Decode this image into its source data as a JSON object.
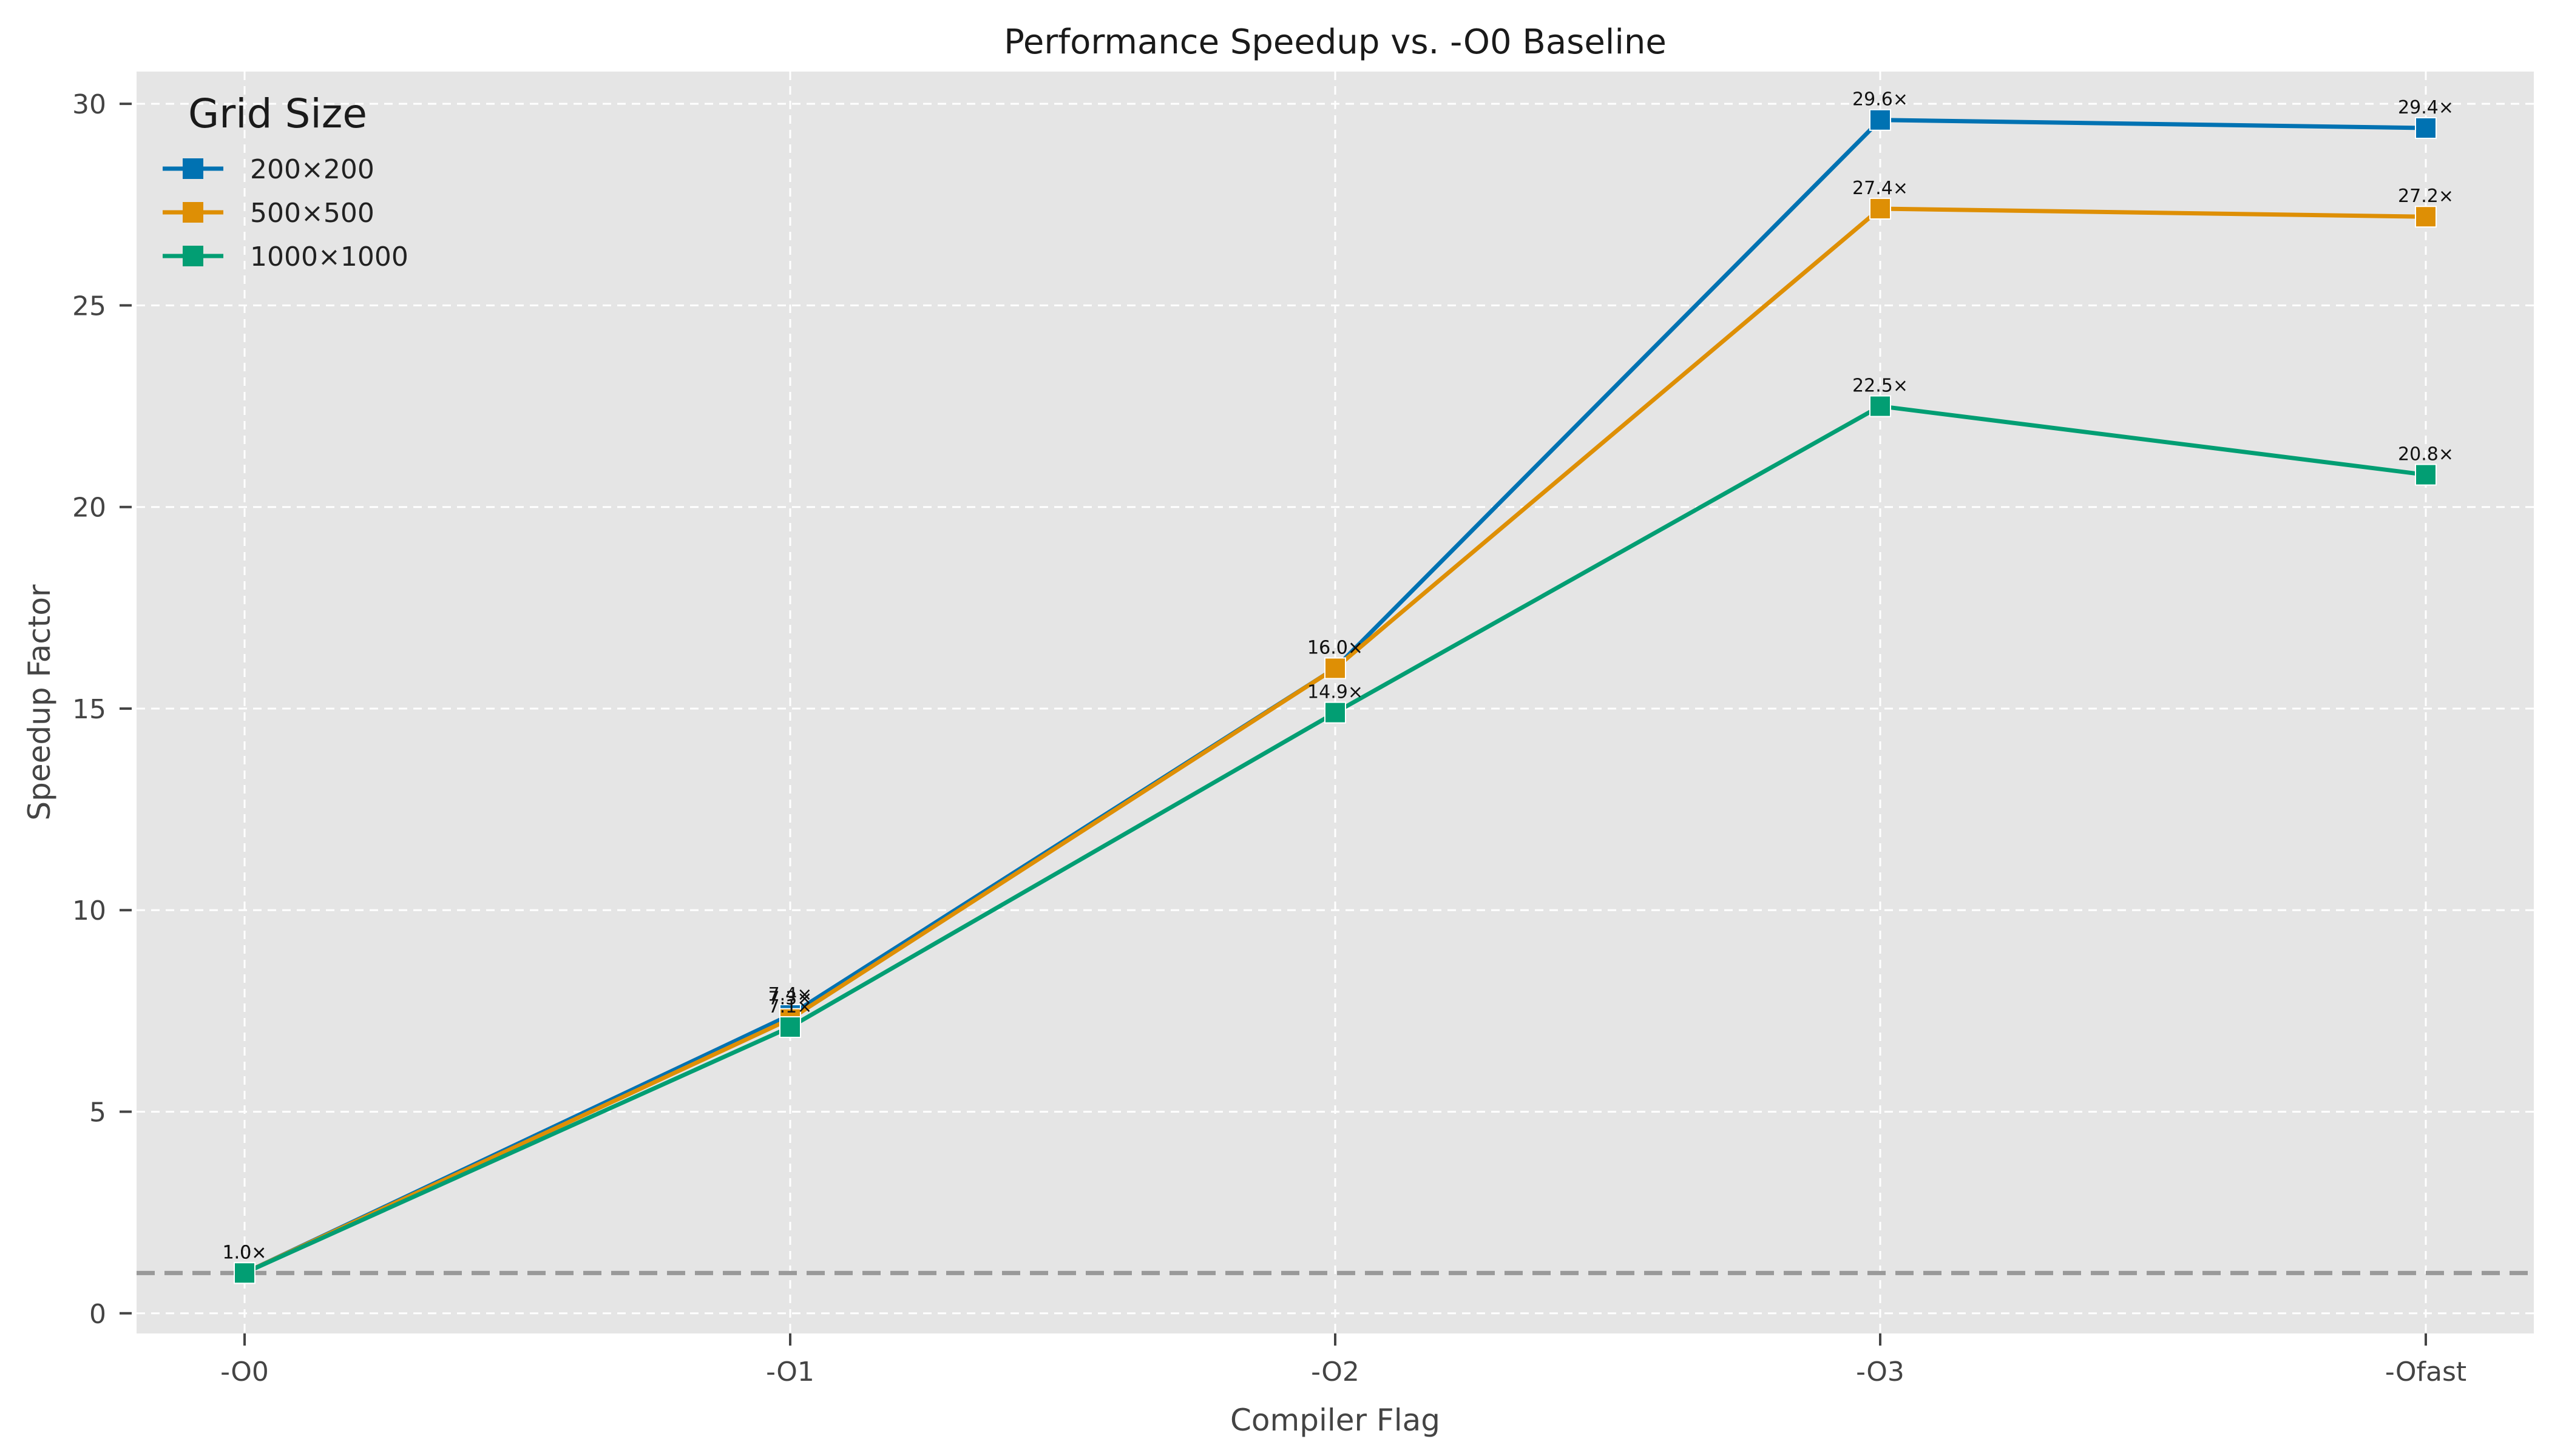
{
  "chart_data": {
    "type": "line",
    "title": "Performance Speedup vs. -O0 Baseline",
    "xlabel": "Compiler Flag",
    "ylabel": "Speedup Factor",
    "categories": [
      "-O0",
      "-O1",
      "-O2",
      "-O3",
      "-Ofast"
    ],
    "ylim": [
      -0.5,
      30.8
    ],
    "yticks": [
      0,
      5,
      10,
      15,
      20,
      25,
      30
    ],
    "grid": true,
    "legend_title": "Grid Size",
    "legend_position": "top-left",
    "baseline": {
      "value": 1.0,
      "style": "dashed",
      "color": "#999999"
    },
    "series": [
      {
        "name": "200×200",
        "color": "#0072b2",
        "values": [
          1.0,
          7.4,
          16.0,
          29.6,
          29.4
        ],
        "labels": [
          "1.0×",
          "7.4×",
          "16.0×",
          "29.6×",
          "29.4×"
        ]
      },
      {
        "name": "500×500",
        "color": "#de8f05",
        "values": [
          1.0,
          7.3,
          16.0,
          27.4,
          27.2
        ],
        "labels": [
          "1.0×",
          "7.3×",
          "16.0×",
          "27.4×",
          "27.2×"
        ]
      },
      {
        "name": "1000×1000",
        "color": "#029e73",
        "values": [
          1.0,
          7.1,
          14.9,
          22.5,
          20.8
        ],
        "labels": [
          "1.0×",
          "7.1×",
          "14.9×",
          "22.5×",
          "20.8×"
        ]
      }
    ]
  }
}
